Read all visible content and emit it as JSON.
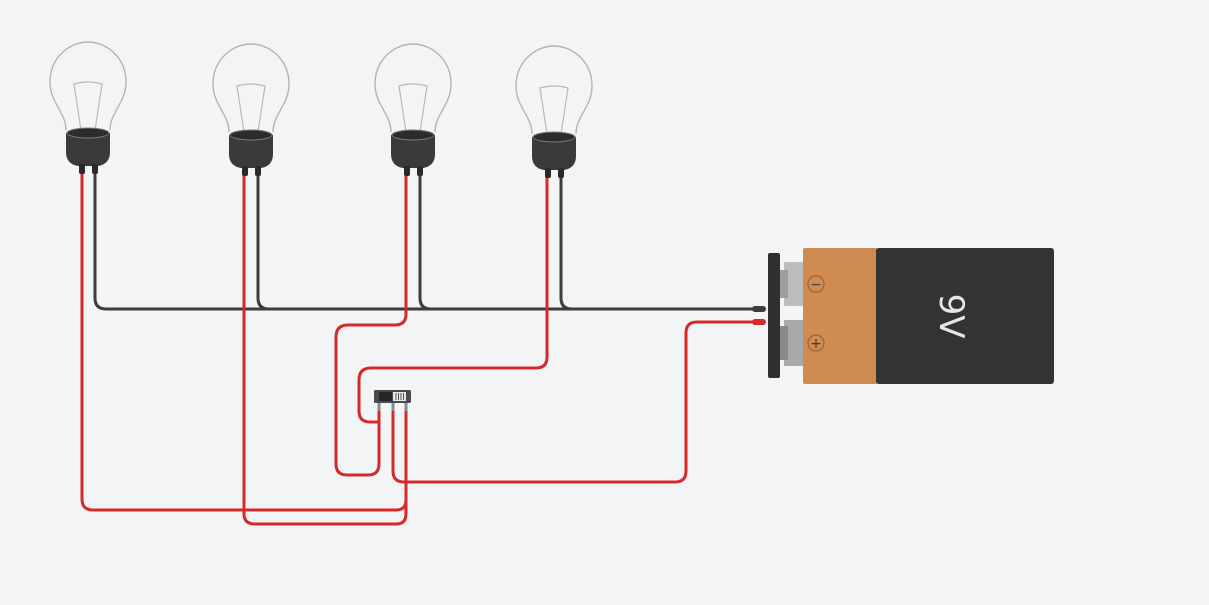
{
  "battery": {
    "label": "9V",
    "negative_symbol": "−",
    "positive_symbol": "+",
    "body_color": "#333333",
    "cap_color": "#d08b52"
  },
  "bulbs": [
    {
      "name": "bulb-1"
    },
    {
      "name": "bulb-2"
    },
    {
      "name": "bulb-3"
    },
    {
      "name": "bulb-4"
    }
  ],
  "switch": {
    "type": "slide-switch"
  },
  "wire_colors": {
    "red": "#d62a2a",
    "black": "#3d3d3d"
  }
}
